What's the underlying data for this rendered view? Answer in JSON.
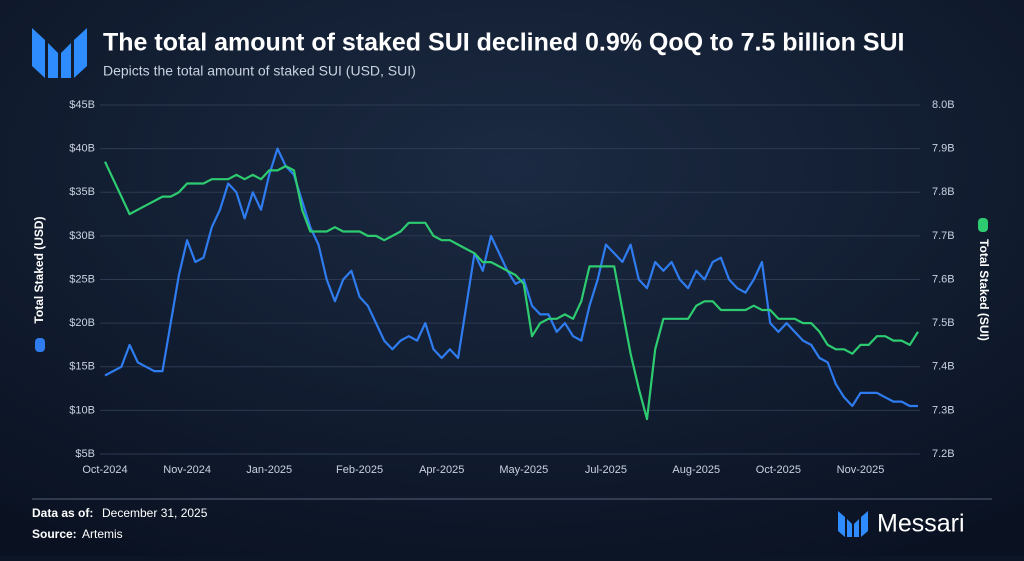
{
  "chart_data": {
    "type": "line",
    "title": "The total amount of staked SUI declined 0.9% QoQ to 7.5 billion SUI",
    "subtitle": "Depicts the total amount of staked SUI (USD, SUI)",
    "y_label": "Total Staked (USD)",
    "y2_label": "Total Staked (SUI)",
    "categories": [
      "Oct-2024",
      null,
      null,
      null,
      null,
      null,
      null,
      null,
      null,
      null,
      "Nov-2024",
      null,
      null,
      null,
      null,
      null,
      null,
      null,
      null,
      null,
      "Jan-2025",
      null,
      null,
      null,
      null,
      null,
      null,
      null,
      null,
      null,
      null,
      "Feb-2025",
      null,
      null,
      null,
      null,
      null,
      null,
      null,
      null,
      null,
      "Apr-2025",
      null,
      null,
      null,
      null,
      null,
      null,
      null,
      null,
      null,
      "May-2025",
      null,
      null,
      null,
      null,
      null,
      null,
      null,
      null,
      null,
      "Jul-2025",
      null,
      null,
      null,
      null,
      null,
      null,
      null,
      null,
      null,
      null,
      "Aug-2025",
      null,
      null,
      null,
      null,
      null,
      null,
      null,
      null,
      null,
      "Oct-2025",
      null,
      null,
      null,
      null,
      null,
      null,
      null,
      null,
      null,
      "Nov-2025",
      null,
      null,
      null,
      null,
      null,
      null,
      null
    ],
    "series": [
      {
        "name": "Total Staked (USD)",
        "color": "#2f7cf0",
        "values": [
          14,
          14.5,
          15,
          17.5,
          15.5,
          15,
          14.5,
          14.5,
          20,
          25.5,
          29.5,
          27,
          27.5,
          31,
          33,
          36,
          35,
          32,
          35,
          33,
          37,
          40,
          38,
          37,
          34,
          31,
          29,
          25,
          22.5,
          25,
          26,
          23,
          22,
          20,
          18,
          17,
          18,
          18.5,
          18,
          20,
          17,
          16,
          17,
          16,
          22,
          28,
          26,
          30,
          28,
          26,
          24.5,
          25,
          22,
          21,
          21,
          19,
          20,
          18.5,
          18,
          22,
          25,
          29,
          28,
          27,
          29,
          25,
          24,
          27,
          26,
          27,
          25,
          24,
          26,
          25,
          27,
          27.5,
          25,
          24,
          23.5,
          25,
          27,
          20,
          19,
          20,
          19,
          18,
          17.5,
          16,
          15.5,
          13,
          11.5,
          10.5,
          12,
          12,
          12,
          11.5,
          11,
          11,
          10.5,
          10.5
        ]
      },
      {
        "name": "Total Staked (SUI)",
        "color": "#2ecc71",
        "axis": "y2",
        "values": [
          7.87,
          7.83,
          7.79,
          7.75,
          7.76,
          7.77,
          7.78,
          7.79,
          7.79,
          7.8,
          7.82,
          7.82,
          7.82,
          7.83,
          7.83,
          7.83,
          7.84,
          7.83,
          7.84,
          7.83,
          7.85,
          7.85,
          7.86,
          7.85,
          7.76,
          7.71,
          7.71,
          7.71,
          7.72,
          7.71,
          7.71,
          7.71,
          7.7,
          7.7,
          7.69,
          7.7,
          7.71,
          7.73,
          7.73,
          7.73,
          7.7,
          7.69,
          7.69,
          7.68,
          7.67,
          7.66,
          7.64,
          7.64,
          7.63,
          7.62,
          7.61,
          7.59,
          7.47,
          7.5,
          7.51,
          7.51,
          7.52,
          7.51,
          7.55,
          7.63,
          7.63,
          7.63,
          7.63,
          7.53,
          7.43,
          7.35,
          7.28,
          7.44,
          7.51,
          7.51,
          7.51,
          7.51,
          7.54,
          7.55,
          7.55,
          7.53,
          7.53,
          7.53,
          7.53,
          7.54,
          7.53,
          7.53,
          7.51,
          7.51,
          7.51,
          7.5,
          7.5,
          7.48,
          7.45,
          7.44,
          7.44,
          7.43,
          7.45,
          7.45,
          7.47,
          7.47,
          7.46,
          7.46,
          7.45,
          7.48
        ]
      }
    ],
    "ylim": [
      5,
      45
    ],
    "yticks": [
      {
        "value": 5,
        "label": "$5B"
      },
      {
        "value": 10,
        "label": "$10B"
      },
      {
        "value": 15,
        "label": "$15B"
      },
      {
        "value": 20,
        "label": "$20B"
      },
      {
        "value": 25,
        "label": "$25B"
      },
      {
        "value": 30,
        "label": "$30B"
      },
      {
        "value": 35,
        "label": "$35B"
      },
      {
        "value": 40,
        "label": "$40B"
      },
      {
        "value": 45,
        "label": "$45B"
      }
    ],
    "y2lim": [
      7.2,
      8.0
    ],
    "y2ticks": [
      {
        "value": 7.2,
        "label": "7.2B"
      },
      {
        "value": 7.3,
        "label": "7.3B"
      },
      {
        "value": 7.4,
        "label": "7.4B"
      },
      {
        "value": 7.5,
        "label": "7.5B"
      },
      {
        "value": 7.6,
        "label": "7.6B"
      },
      {
        "value": 7.7,
        "label": "7.7B"
      },
      {
        "value": 7.8,
        "label": "7.8B"
      },
      {
        "value": 7.9,
        "label": "7.9B"
      },
      {
        "value": 8.0,
        "label": "8.0B"
      }
    ],
    "grid": true,
    "footer": {
      "date_label": "Data as of:",
      "date": "December 31, 2025",
      "source_label": "Source:",
      "source": "Artemis",
      "brand": "Messari"
    }
  }
}
